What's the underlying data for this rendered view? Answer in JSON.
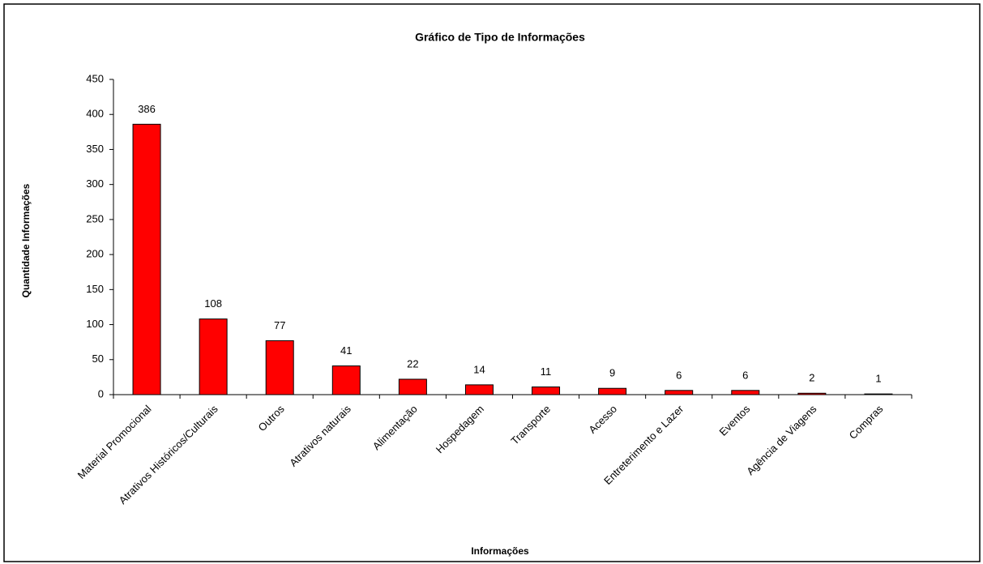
{
  "chart_data": {
    "type": "bar",
    "title": "Gráfico de Tipo de Informações",
    "x_label": "Informações",
    "y_label": "Quantidade Informações",
    "categories": [
      "Material Promocional",
      "Atrativos Históricos/Culturais",
      "Outros",
      "Atrativos naturais",
      "Alimentação",
      "Hospedagem",
      "Transporte",
      "Acesso",
      "Entreterimento e Lazer",
      "Eventos",
      "Agência de Viagens",
      "Compras"
    ],
    "values": [
      386,
      108,
      77,
      41,
      22,
      14,
      11,
      9,
      6,
      6,
      2,
      1
    ],
    "color": "#ff0000",
    "ylim": [
      0,
      450
    ],
    "yticks": [
      0,
      50,
      100,
      150,
      200,
      250,
      300,
      350,
      400,
      450
    ],
    "grid": false
  }
}
